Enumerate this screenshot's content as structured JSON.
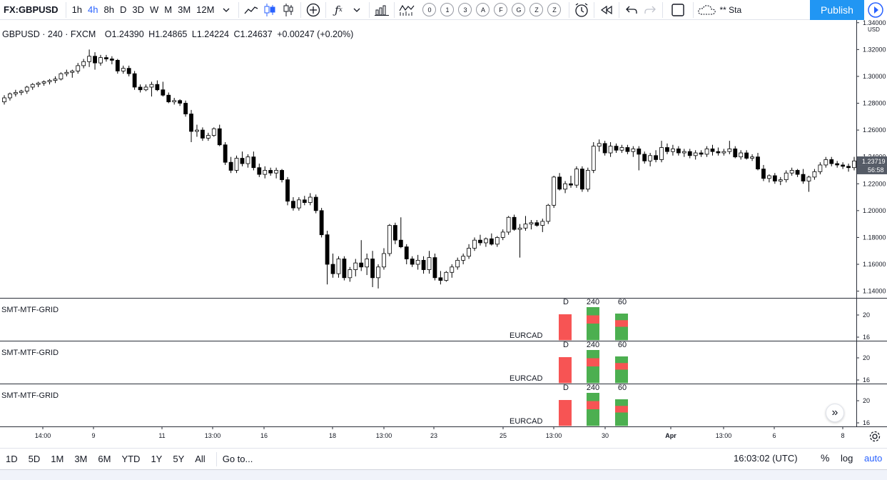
{
  "toolbar": {
    "symbol": "FX:GBPUSD",
    "timeframes": [
      "1h",
      "4h",
      "8h",
      "D",
      "3D",
      "W",
      "M",
      "3M",
      "12M"
    ],
    "active_timeframe": "4h",
    "compare_circles": [
      "0",
      "1",
      "3",
      "A",
      "F",
      "G",
      "Z",
      "Z"
    ],
    "status_text": "** Sta",
    "publish_label": "Publish",
    "icons": [
      "chevron-down-icon",
      "line-chart-icon",
      "candles-icon",
      "bars-icon",
      "add-circle-icon",
      "fx-icon",
      "chevron-down-icon",
      "bar-chart-icon",
      "indicator-icon",
      "alarm-icon",
      "replay-icon",
      "undo-icon",
      "redo-icon",
      "fullscreen-icon",
      "cloud-icon",
      "play-icon"
    ]
  },
  "legend": {
    "title": "GBPUSD · 240 · FXCM",
    "open": "O1.24390",
    "high": "H1.24865",
    "low": "L1.24224",
    "close": "C1.24637",
    "change": "+0.00247 (+0.20%)"
  },
  "price_axis": {
    "labels": [
      "1.34000",
      "1.32000",
      "1.30000",
      "1.28000",
      "1.26000",
      "1.24000",
      "1.22000",
      "1.20000",
      "1.18000",
      "1.16000",
      "1.14000"
    ],
    "currency": "USD",
    "last_price": "1.23719",
    "countdown": "56:58"
  },
  "chart_data": {
    "type": "candlestick",
    "xlabels": [
      "14:00",
      "9",
      "11",
      "13:00",
      "16",
      "18",
      "13:00",
      "23",
      "25",
      "13:00",
      "30",
      "Apr",
      "13:00",
      "6",
      "8"
    ],
    "ylim": [
      1.135,
      1.342
    ],
    "candles": [
      [
        1.281,
        1.286,
        1.279,
        1.284
      ],
      [
        1.284,
        1.288,
        1.282,
        1.287
      ],
      [
        1.287,
        1.29,
        1.285,
        1.288
      ],
      [
        1.288,
        1.29,
        1.286,
        1.289
      ],
      [
        1.289,
        1.293,
        1.287,
        1.292
      ],
      [
        1.292,
        1.295,
        1.29,
        1.294
      ],
      [
        1.294,
        1.296,
        1.292,
        1.295
      ],
      [
        1.295,
        1.297,
        1.293,
        1.296
      ],
      [
        1.296,
        1.298,
        1.294,
        1.297
      ],
      [
        1.297,
        1.3,
        1.295,
        1.298
      ],
      [
        1.298,
        1.303,
        1.297,
        1.302
      ],
      [
        1.302,
        1.305,
        1.3,
        1.303
      ],
      [
        1.303,
        1.305,
        1.299,
        1.304
      ],
      [
        1.304,
        1.31,
        1.302,
        1.308
      ],
      [
        1.308,
        1.313,
        1.306,
        1.311
      ],
      [
        1.311,
        1.32,
        1.307,
        1.315
      ],
      [
        1.315,
        1.318,
        1.305,
        1.31
      ],
      [
        1.31,
        1.316,
        1.308,
        1.314
      ],
      [
        1.314,
        1.316,
        1.311,
        1.313
      ],
      [
        1.313,
        1.315,
        1.309,
        1.312
      ],
      [
        1.312,
        1.313,
        1.302,
        1.304
      ],
      [
        1.304,
        1.308,
        1.302,
        1.306
      ],
      [
        1.306,
        1.308,
        1.3,
        1.302
      ],
      [
        1.302,
        1.304,
        1.29,
        1.292
      ],
      [
        1.292,
        1.294,
        1.288,
        1.29
      ],
      [
        1.29,
        1.294,
        1.289,
        1.292
      ],
      [
        1.292,
        1.296,
        1.285,
        1.294
      ],
      [
        1.294,
        1.297,
        1.289,
        1.29
      ],
      [
        1.29,
        1.296,
        1.285,
        1.286
      ],
      [
        1.286,
        1.288,
        1.28,
        1.281
      ],
      [
        1.281,
        1.284,
        1.279,
        1.282
      ],
      [
        1.282,
        1.283,
        1.278,
        1.28
      ],
      [
        1.28,
        1.282,
        1.27,
        1.272
      ],
      [
        1.272,
        1.275,
        1.251,
        1.259
      ],
      [
        1.259,
        1.264,
        1.255,
        1.26
      ],
      [
        1.26,
        1.262,
        1.252,
        1.254
      ],
      [
        1.254,
        1.258,
        1.252,
        1.256
      ],
      [
        1.256,
        1.262,
        1.255,
        1.261
      ],
      [
        1.261,
        1.264,
        1.248,
        1.249
      ],
      [
        1.249,
        1.251,
        1.234,
        1.236
      ],
      [
        1.236,
        1.24,
        1.228,
        1.23
      ],
      [
        1.23,
        1.241,
        1.228,
        1.239
      ],
      [
        1.239,
        1.244,
        1.233,
        1.235
      ],
      [
        1.235,
        1.242,
        1.232,
        1.24
      ],
      [
        1.24,
        1.244,
        1.23,
        1.232
      ],
      [
        1.232,
        1.235,
        1.225,
        1.227
      ],
      [
        1.227,
        1.233,
        1.224,
        1.23
      ],
      [
        1.23,
        1.232,
        1.226,
        1.228
      ],
      [
        1.228,
        1.232,
        1.224,
        1.23
      ],
      [
        1.23,
        1.231,
        1.221,
        1.223
      ],
      [
        1.223,
        1.225,
        1.204,
        1.207
      ],
      [
        1.207,
        1.21,
        1.2,
        1.202
      ],
      [
        1.202,
        1.21,
        1.2,
        1.208
      ],
      [
        1.208,
        1.211,
        1.204,
        1.206
      ],
      [
        1.206,
        1.213,
        1.204,
        1.21
      ],
      [
        1.21,
        1.212,
        1.198,
        1.2
      ],
      [
        1.2,
        1.202,
        1.18,
        1.182
      ],
      [
        1.182,
        1.185,
        1.145,
        1.16
      ],
      [
        1.16,
        1.168,
        1.15,
        1.153
      ],
      [
        1.153,
        1.166,
        1.15,
        1.164
      ],
      [
        1.164,
        1.166,
        1.148,
        1.15
      ],
      [
        1.15,
        1.158,
        1.147,
        1.156
      ],
      [
        1.156,
        1.164,
        1.151,
        1.161
      ],
      [
        1.161,
        1.178,
        1.155,
        1.158
      ],
      [
        1.158,
        1.168,
        1.152,
        1.164
      ],
      [
        1.164,
        1.17,
        1.143,
        1.15
      ],
      [
        1.15,
        1.16,
        1.142,
        1.158
      ],
      [
        1.158,
        1.172,
        1.156,
        1.168
      ],
      [
        1.168,
        1.19,
        1.166,
        1.189
      ],
      [
        1.189,
        1.191,
        1.175,
        1.178
      ],
      [
        1.178,
        1.195,
        1.172,
        1.173
      ],
      [
        1.173,
        1.175,
        1.16,
        1.164
      ],
      [
        1.164,
        1.166,
        1.158,
        1.16
      ],
      [
        1.16,
        1.167,
        1.156,
        1.163
      ],
      [
        1.163,
        1.166,
        1.153,
        1.156
      ],
      [
        1.156,
        1.17,
        1.153,
        1.165
      ],
      [
        1.165,
        1.168,
        1.148,
        1.15
      ],
      [
        1.15,
        1.155,
        1.145,
        1.148
      ],
      [
        1.148,
        1.155,
        1.147,
        1.154
      ],
      [
        1.154,
        1.16,
        1.15,
        1.158
      ],
      [
        1.158,
        1.165,
        1.156,
        1.163
      ],
      [
        1.163,
        1.168,
        1.16,
        1.166
      ],
      [
        1.166,
        1.175,
        1.164,
        1.172
      ],
      [
        1.172,
        1.18,
        1.17,
        1.178
      ],
      [
        1.178,
        1.182,
        1.174,
        1.176
      ],
      [
        1.176,
        1.18,
        1.173,
        1.179
      ],
      [
        1.179,
        1.183,
        1.174,
        1.175
      ],
      [
        1.175,
        1.181,
        1.173,
        1.18
      ],
      [
        1.18,
        1.186,
        1.178,
        1.184
      ],
      [
        1.184,
        1.196,
        1.182,
        1.195
      ],
      [
        1.195,
        1.197,
        1.185,
        1.186
      ],
      [
        1.186,
        1.19,
        1.165,
        1.187
      ],
      [
        1.187,
        1.196,
        1.185,
        1.19
      ],
      [
        1.19,
        1.193,
        1.186,
        1.191
      ],
      [
        1.191,
        1.193,
        1.188,
        1.189
      ],
      [
        1.189,
        1.194,
        1.184,
        1.192
      ],
      [
        1.192,
        1.205,
        1.19,
        1.204
      ],
      [
        1.204,
        1.226,
        1.202,
        1.225
      ],
      [
        1.225,
        1.228,
        1.215,
        1.216
      ],
      [
        1.216,
        1.222,
        1.213,
        1.22
      ],
      [
        1.22,
        1.226,
        1.217,
        1.219
      ],
      [
        1.219,
        1.233,
        1.217,
        1.231
      ],
      [
        1.231,
        1.233,
        1.214,
        1.216
      ],
      [
        1.216,
        1.232,
        1.214,
        1.23
      ],
      [
        1.23,
        1.251,
        1.228,
        1.248
      ],
      [
        1.248,
        1.253,
        1.244,
        1.25
      ],
      [
        1.25,
        1.252,
        1.241,
        1.243
      ],
      [
        1.243,
        1.251,
        1.24,
        1.248
      ],
      [
        1.248,
        1.25,
        1.243,
        1.245
      ],
      [
        1.245,
        1.249,
        1.243,
        1.247
      ],
      [
        1.247,
        1.249,
        1.242,
        1.244
      ],
      [
        1.244,
        1.248,
        1.24,
        1.246
      ],
      [
        1.246,
        1.248,
        1.23,
        1.242
      ],
      [
        1.242,
        1.244,
        1.235,
        1.237
      ],
      [
        1.237,
        1.243,
        1.233,
        1.241
      ],
      [
        1.241,
        1.245,
        1.236,
        1.238
      ],
      [
        1.238,
        1.252,
        1.236,
        1.247
      ],
      [
        1.247,
        1.25,
        1.242,
        1.244
      ],
      [
        1.244,
        1.249,
        1.241,
        1.246
      ],
      [
        1.246,
        1.248,
        1.241,
        1.243
      ],
      [
        1.243,
        1.246,
        1.24,
        1.244
      ],
      [
        1.244,
        1.246,
        1.239,
        1.241
      ],
      [
        1.241,
        1.245,
        1.238,
        1.243
      ],
      [
        1.243,
        1.245,
        1.24,
        1.242
      ],
      [
        1.242,
        1.248,
        1.24,
        1.246
      ],
      [
        1.246,
        1.249,
        1.241,
        1.244
      ],
      [
        1.244,
        1.247,
        1.241,
        1.243
      ],
      [
        1.243,
        1.246,
        1.241,
        1.244
      ],
      [
        1.244,
        1.252,
        1.242,
        1.246
      ],
      [
        1.246,
        1.248,
        1.239,
        1.24
      ],
      [
        1.24,
        1.245,
        1.238,
        1.243
      ],
      [
        1.243,
        1.245,
        1.238,
        1.239
      ],
      [
        1.239,
        1.242,
        1.237,
        1.24
      ],
      [
        1.24,
        1.243,
        1.23,
        1.231
      ],
      [
        1.231,
        1.234,
        1.222,
        1.224
      ],
      [
        1.224,
        1.227,
        1.221,
        1.226
      ],
      [
        1.226,
        1.228,
        1.22,
        1.222
      ],
      [
        1.222,
        1.225,
        1.219,
        1.223
      ],
      [
        1.223,
        1.23,
        1.221,
        1.228
      ],
      [
        1.228,
        1.232,
        1.226,
        1.23
      ],
      [
        1.23,
        1.231,
        1.225,
        1.227
      ],
      [
        1.227,
        1.231,
        1.22,
        1.222
      ],
      [
        1.222,
        1.226,
        1.214,
        1.225
      ],
      [
        1.225,
        1.231,
        1.223,
        1.229
      ],
      [
        1.229,
        1.236,
        1.227,
        1.234
      ],
      [
        1.234,
        1.24,
        1.232,
        1.238
      ],
      [
        1.238,
        1.24,
        1.233,
        1.235
      ],
      [
        1.235,
        1.237,
        1.232,
        1.234
      ],
      [
        1.234,
        1.236,
        1.231,
        1.233
      ],
      [
        1.233,
        1.235,
        1.229,
        1.232
      ],
      [
        1.232,
        1.24,
        1.23,
        1.237
      ]
    ]
  },
  "indicator_panes": [
    {
      "name": "SMT-MTF-GRID",
      "symbol": "EURCAD",
      "axis": [
        "20",
        "16"
      ],
      "columns": [
        {
          "label": "D",
          "cells": [
            "red",
            "red",
            "red",
            "red"
          ]
        },
        {
          "label": "240",
          "cells": [
            "green",
            "red",
            "green",
            "green"
          ]
        },
        {
          "label": "60",
          "cells": [
            "green",
            "red",
            "green",
            "green"
          ]
        }
      ]
    },
    {
      "name": "SMT-MTF-GRID",
      "symbol": "EURCAD",
      "axis": [
        "20",
        "16"
      ],
      "columns": [
        {
          "label": "D",
          "cells": [
            "red",
            "red",
            "red",
            "red"
          ]
        },
        {
          "label": "240",
          "cells": [
            "green",
            "red",
            "green",
            "green"
          ]
        },
        {
          "label": "60",
          "cells": [
            "green",
            "red",
            "green",
            "green"
          ]
        }
      ]
    },
    {
      "name": "SMT-MTF-GRID",
      "symbol": "EURCAD",
      "axis": [
        "20",
        "16"
      ],
      "columns": [
        {
          "label": "D",
          "cells": [
            "red",
            "red",
            "red",
            "red"
          ]
        },
        {
          "label": "240",
          "cells": [
            "green",
            "red",
            "green",
            "green"
          ]
        },
        {
          "label": "60",
          "cells": [
            "green",
            "red",
            "green",
            "green"
          ]
        }
      ]
    }
  ],
  "colors": {
    "red": "#f75454",
    "green": "#4caf50",
    "accent": "#2962ff",
    "publish": "#2196f3"
  },
  "bottombar": {
    "ranges": [
      "1D",
      "5D",
      "1M",
      "3M",
      "6M",
      "YTD",
      "1Y",
      "5Y",
      "All"
    ],
    "goto": "Go to...",
    "clock": "16:03:02 (UTC)",
    "percent": "%",
    "log": "log",
    "auto": "auto"
  }
}
